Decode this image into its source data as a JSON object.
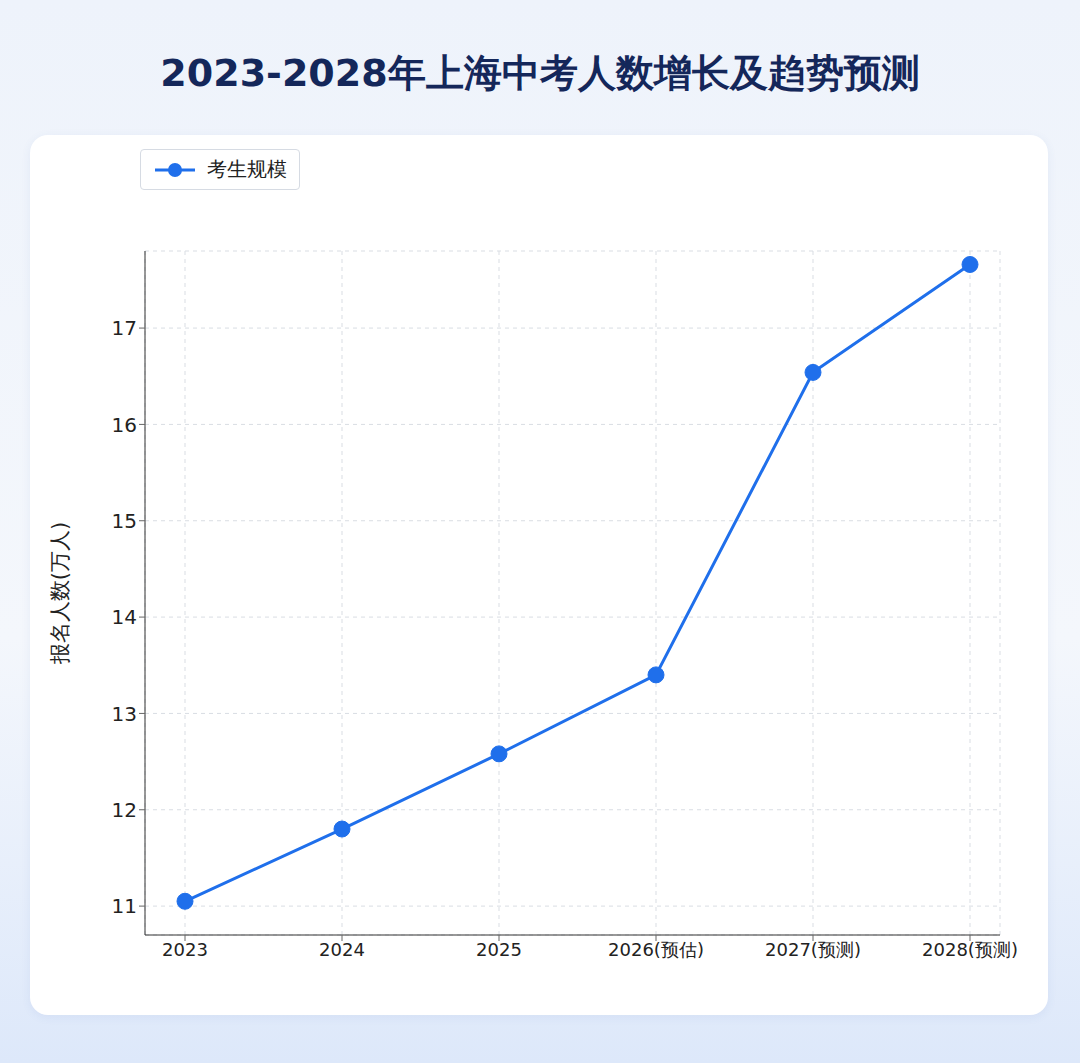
{
  "chart_data": {
    "type": "line",
    "title": "2023-2028年上海中考人数增长及趋势预测",
    "y_label": "报名人数(万人)",
    "categories": [
      "2023",
      "2024",
      "2025",
      "2026(预估)",
      "2027(预测)",
      "2028(预测)"
    ],
    "series": [
      {
        "name": "考生规模",
        "color": "#1f6feb",
        "values": [
          11.05,
          11.8,
          12.58,
          13.4,
          16.54,
          17.66
        ]
      }
    ],
    "ylim": [
      10.7,
      17.8
    ],
    "yticks": [
      11,
      12,
      13,
      14,
      15,
      16,
      17
    ],
    "grid": true,
    "legend": "upper left",
    "marker": "circle"
  }
}
